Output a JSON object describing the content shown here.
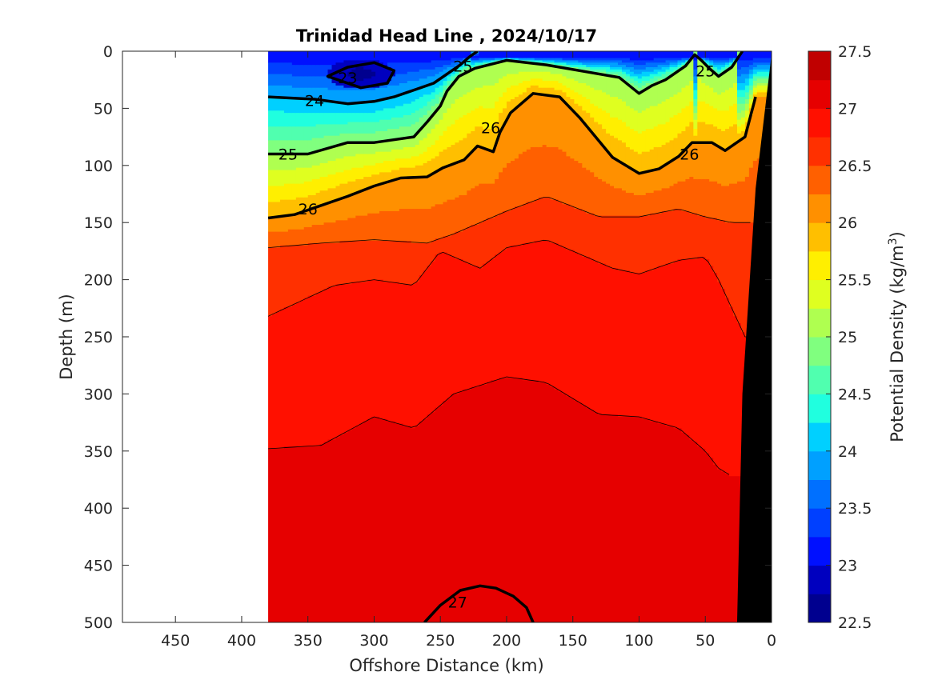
{
  "chart_data": {
    "type": "contour",
    "title": "Trinidad Head Line , 2024/10/17",
    "xlabel": "Offshore Distance (km)",
    "ylabel": "Depth (m)",
    "colorbar_label_main": "Potential Density (kg/m",
    "colorbar_label_sup": "3",
    "colorbar_label_end": ")",
    "xlim": [
      490,
      0
    ],
    "ylim": [
      0,
      500
    ],
    "x_reversed": true,
    "y_reversed": true,
    "xticks": [
      "450",
      "400",
      "350",
      "300",
      "250",
      "200",
      "150",
      "100",
      "50",
      "0"
    ],
    "yticks": [
      "0",
      "50",
      "100",
      "150",
      "200",
      "250",
      "300",
      "350",
      "400",
      "450",
      "500"
    ],
    "colorbar_ticks": [
      "27.5",
      "27",
      "26.5",
      "26",
      "25.5",
      "25",
      "24.5",
      "24",
      "23.5",
      "23",
      "22.5"
    ],
    "colorbar_range": [
      22.5,
      27.5
    ],
    "colorbar_step": 0.25,
    "colormap": [
      "#00008f",
      "#0000bf",
      "#0010ff",
      "#0040ff",
      "#0070ff",
      "#00a0ff",
      "#00d0ff",
      "#20ffdf",
      "#50ffaf",
      "#80ff7f",
      "#afff50",
      "#dfff20",
      "#ffef00",
      "#ffbf00",
      "#ff9000",
      "#ff6000",
      "#ff3000",
      "#ff1000",
      "#e60000",
      "#c00000"
    ],
    "data_extent_x_km": [
      380,
      0
    ],
    "bathymetry_color": "#000000",
    "contour_labels": [
      {
        "text": "23",
        "x": 320,
        "y": 23
      },
      {
        "text": "24",
        "x": 345,
        "y": 43
      },
      {
        "text": "25",
        "x": 233,
        "y": 13
      },
      {
        "text": "25",
        "x": 50,
        "y": 17
      },
      {
        "text": "25",
        "x": 365,
        "y": 90
      },
      {
        "text": "26",
        "x": 212,
        "y": 67
      },
      {
        "text": "26",
        "x": 62,
        "y": 90
      },
      {
        "text": "26",
        "x": 350,
        "y": 138
      },
      {
        "text": "27",
        "x": 237,
        "y": 482
      }
    ],
    "isopycnals": [
      {
        "value": 23,
        "closed": true,
        "x": [
          335,
          320,
          300,
          285,
          290,
          310,
          335
        ],
        "y": [
          22,
          14,
          10,
          17,
          28,
          32,
          22
        ]
      },
      {
        "value": 24,
        "x": [
          380,
          345,
          320,
          300,
          285,
          270,
          255,
          245,
          235,
          228,
          222
        ],
        "y": [
          40,
          42,
          46,
          44,
          40,
          34,
          28,
          20,
          12,
          5,
          0
        ]
      },
      {
        "value": 25,
        "x": [
          380,
          350,
          320,
          300,
          270,
          260,
          250,
          245,
          236,
          224,
          200,
          170,
          140,
          115,
          100,
          90,
          80,
          65,
          58,
          53,
          47,
          40,
          30,
          22
        ],
        "y": [
          90,
          90,
          80,
          80,
          75,
          62,
          48,
          35,
          22,
          15,
          8,
          12,
          18,
          23,
          37,
          30,
          25,
          13,
          3,
          8,
          15,
          22,
          14,
          0
        ]
      },
      {
        "value": 26,
        "x": [
          380,
          360,
          340,
          320,
          300,
          280,
          260,
          248,
          232,
          222,
          210,
          205,
          197,
          180,
          160,
          145,
          120,
          100,
          85,
          70,
          60,
          45,
          35,
          20,
          12
        ],
        "y": [
          146,
          143,
          135,
          127,
          118,
          111,
          110,
          102,
          95,
          83,
          88,
          71,
          54,
          37,
          40,
          58,
          93,
          107,
          103,
          92,
          80,
          80,
          87,
          75,
          40
        ]
      },
      {
        "value": 27,
        "x": [
          262,
          250,
          235,
          220,
          208,
          195,
          185,
          180
        ],
        "y": [
          500,
          485,
          472,
          468,
          470,
          477,
          487,
          500
        ]
      }
    ]
  }
}
